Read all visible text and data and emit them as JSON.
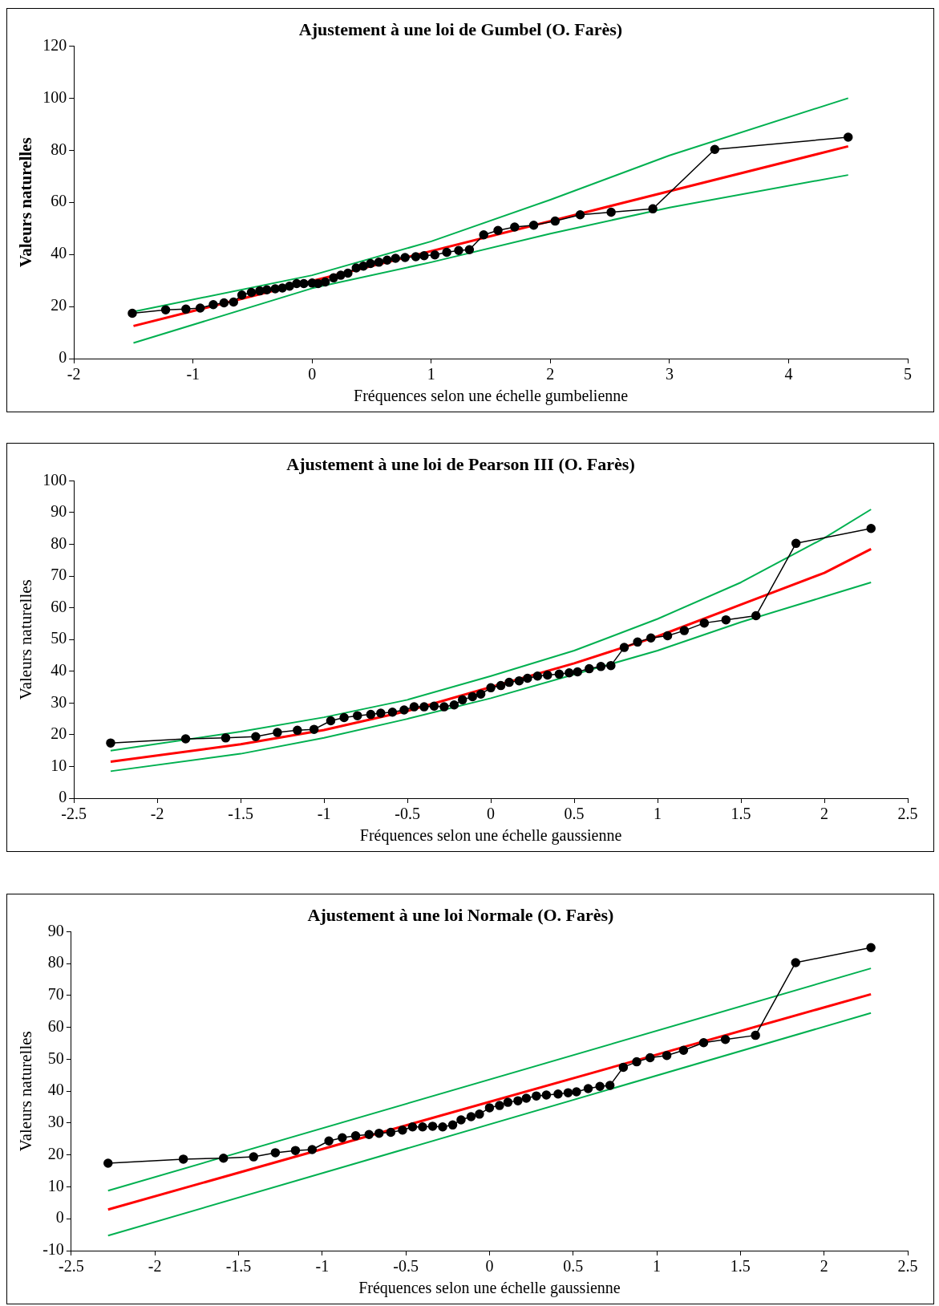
{
  "chart_data": [
    {
      "type": "line",
      "title": "Ajustement à une loi de Gumbel (O. Farès)",
      "xlabel": "Fréquences selon une échelle gumbelienne",
      "ylabel": "Valeurs naturelles",
      "xlim": [
        -2,
        5
      ],
      "xticks": [
        -2,
        -1,
        0,
        1,
        2,
        3,
        4,
        5
      ],
      "ylim": [
        0,
        120
      ],
      "yticks": [
        0,
        20,
        40,
        60,
        80,
        100,
        120
      ],
      "grid": false,
      "legend": false,
      "series": [
        {
          "color": "#000000",
          "marker": "circle",
          "x": [
            -1.51,
            -1.23,
            -1.06,
            -0.94,
            -0.83,
            -0.74,
            -0.66,
            -0.59,
            -0.51,
            -0.44,
            -0.38,
            -0.31,
            -0.25,
            -0.19,
            -0.13,
            -0.07,
            0,
            0.05,
            0.11,
            0.18,
            0.24,
            0.3,
            0.37,
            0.43,
            0.49,
            0.56,
            0.63,
            0.7,
            0.78,
            0.87,
            0.94,
            1.03,
            1.13,
            1.23,
            1.32,
            1.44,
            1.56,
            1.7,
            1.86,
            2.04,
            2.25,
            2.51,
            2.86,
            3.38,
            4.5
          ],
          "values": [
            17.4,
            18.7,
            19,
            19.4,
            20.7,
            21.4,
            21.7,
            24.4,
            25.4,
            26,
            26.4,
            26.8,
            27.1,
            27.8,
            28.8,
            28.8,
            29,
            28.8,
            29.4,
            31,
            32,
            32.8,
            34.8,
            35.5,
            36.5,
            37,
            37.8,
            38.5,
            38.8,
            39.1,
            39.5,
            39.8,
            40.8,
            41.5,
            41.8,
            47.5,
            49.2,
            50.5,
            51.2,
            52.8,
            55.2,
            56.2,
            57.5,
            80.3,
            85
          ]
        },
        {
          "color": "#ff0000",
          "marker": "none",
          "x": [
            -1.5,
            0,
            4.5
          ],
          "values": [
            12.5,
            29.8,
            81.5
          ]
        },
        {
          "color": "#00b050",
          "marker": "none",
          "x": [
            -1.5,
            0,
            1,
            2,
            3,
            4.5
          ],
          "values": [
            18,
            32,
            45,
            61,
            78,
            100
          ]
        },
        {
          "color": "#00b050",
          "marker": "none",
          "x": [
            -1.5,
            0,
            1,
            2,
            3,
            4.5
          ],
          "values": [
            6,
            27,
            37,
            48,
            58,
            70.5
          ]
        }
      ]
    },
    {
      "type": "line",
      "title": "Ajustement à une loi de Pearson III (O. Farès)",
      "xlabel": "Fréquences selon une échelle gaussienne",
      "ylabel": "Valeurs naturelles",
      "xlim": [
        -2.5,
        2.5
      ],
      "xticks": [
        -2.5,
        -2,
        -1.5,
        -1,
        -0.5,
        0,
        0.5,
        1,
        1.5,
        2,
        2.5
      ],
      "ylim": [
        0,
        100
      ],
      "yticks": [
        0,
        10,
        20,
        30,
        40,
        50,
        60,
        70,
        80,
        90,
        100
      ],
      "grid": false,
      "legend": false,
      "series": [
        {
          "color": "#000000",
          "marker": "circle",
          "x": [
            -2.28,
            -1.83,
            -1.59,
            -1.41,
            -1.28,
            -1.16,
            -1.06,
            -0.96,
            -0.88,
            -0.8,
            -0.72,
            -0.66,
            -0.59,
            -0.52,
            -0.46,
            -0.4,
            -0.34,
            -0.28,
            -0.22,
            -0.17,
            -0.11,
            -0.06,
            0,
            0.06,
            0.11,
            0.17,
            0.22,
            0.28,
            0.34,
            0.41,
            0.47,
            0.52,
            0.59,
            0.66,
            0.72,
            0.8,
            0.88,
            0.96,
            1.06,
            1.16,
            1.28,
            1.41,
            1.59,
            1.83,
            2.28
          ],
          "values": [
            17.4,
            18.7,
            19,
            19.4,
            20.7,
            21.4,
            21.7,
            24.4,
            25.4,
            26,
            26.4,
            26.8,
            27.1,
            27.8,
            28.8,
            28.8,
            29,
            28.8,
            29.4,
            31,
            32,
            32.8,
            34.8,
            35.5,
            36.5,
            37,
            37.8,
            38.5,
            38.8,
            39.1,
            39.5,
            39.8,
            40.8,
            41.5,
            41.8,
            47.5,
            49.2,
            50.5,
            51.2,
            52.8,
            55.2,
            56.2,
            57.5,
            80.3,
            85
          ]
        },
        {
          "color": "#ff0000",
          "marker": "none",
          "x": [
            -2.28,
            -1.5,
            -1,
            -0.5,
            0,
            0.5,
            1,
            1.5,
            2,
            2.28
          ],
          "values": [
            11.5,
            17,
            21.5,
            27.5,
            35,
            42.5,
            51,
            61,
            71,
            78.5
          ]
        },
        {
          "color": "#00b050",
          "marker": "none",
          "x": [
            -2.28,
            -1.5,
            -1,
            -0.5,
            0,
            0.5,
            1,
            1.5,
            2,
            2.28
          ],
          "values": [
            15,
            21,
            25.5,
            31,
            38.5,
            46.5,
            56.5,
            68,
            82,
            91
          ]
        },
        {
          "color": "#00b050",
          "marker": "none",
          "x": [
            -2.28,
            -1.5,
            -1,
            -0.5,
            0,
            0.5,
            1,
            1.5,
            2,
            2.28
          ],
          "values": [
            8.5,
            14,
            19,
            25,
            31.5,
            39,
            46.5,
            55.5,
            63.5,
            68
          ]
        }
      ]
    },
    {
      "type": "line",
      "title": "Ajustement à une loi Normale (O. Farès)",
      "xlabel": "Fréquences selon une échelle gaussienne",
      "ylabel": "Valeurs naturelles",
      "xlim": [
        -2.5,
        2.5
      ],
      "xticks": [
        -2.5,
        -2,
        -1.5,
        -1,
        -0.5,
        0,
        0.5,
        1,
        1.5,
        2,
        2.5
      ],
      "ylim": [
        -10,
        90
      ],
      "yticks": [
        -10,
        0,
        10,
        20,
        30,
        40,
        50,
        60,
        70,
        80,
        90
      ],
      "grid": false,
      "legend": false,
      "series": [
        {
          "color": "#000000",
          "marker": "circle",
          "x": [
            -2.28,
            -1.83,
            -1.59,
            -1.41,
            -1.28,
            -1.16,
            -1.06,
            -0.96,
            -0.88,
            -0.8,
            -0.72,
            -0.66,
            -0.59,
            -0.52,
            -0.46,
            -0.4,
            -0.34,
            -0.28,
            -0.22,
            -0.17,
            -0.11,
            -0.06,
            0,
            0.06,
            0.11,
            0.17,
            0.22,
            0.28,
            0.34,
            0.41,
            0.47,
            0.52,
            0.59,
            0.66,
            0.72,
            0.8,
            0.88,
            0.96,
            1.06,
            1.16,
            1.28,
            1.41,
            1.59,
            1.83,
            2.28
          ],
          "values": [
            17.4,
            18.7,
            19,
            19.4,
            20.7,
            21.4,
            21.7,
            24.4,
            25.4,
            26,
            26.4,
            26.8,
            27.1,
            27.8,
            28.8,
            28.8,
            29,
            28.8,
            29.4,
            31,
            32,
            32.8,
            34.8,
            35.5,
            36.5,
            37,
            37.8,
            38.5,
            38.8,
            39.1,
            39.5,
            39.8,
            40.8,
            41.5,
            41.8,
            47.5,
            49.2,
            50.5,
            51.2,
            52.8,
            55.2,
            56.2,
            57.5,
            80.3,
            85
          ]
        },
        {
          "color": "#ff0000",
          "marker": "none",
          "x": [
            -2.28,
            2.28
          ],
          "values": [
            2.9,
            70.4
          ]
        },
        {
          "color": "#00b050",
          "marker": "none",
          "x": [
            -2.28,
            2.28
          ],
          "values": [
            8.8,
            78.5
          ]
        },
        {
          "color": "#00b050",
          "marker": "none",
          "x": [
            -2.28,
            2.28
          ],
          "values": [
            -5.3,
            64.5
          ]
        }
      ]
    }
  ]
}
